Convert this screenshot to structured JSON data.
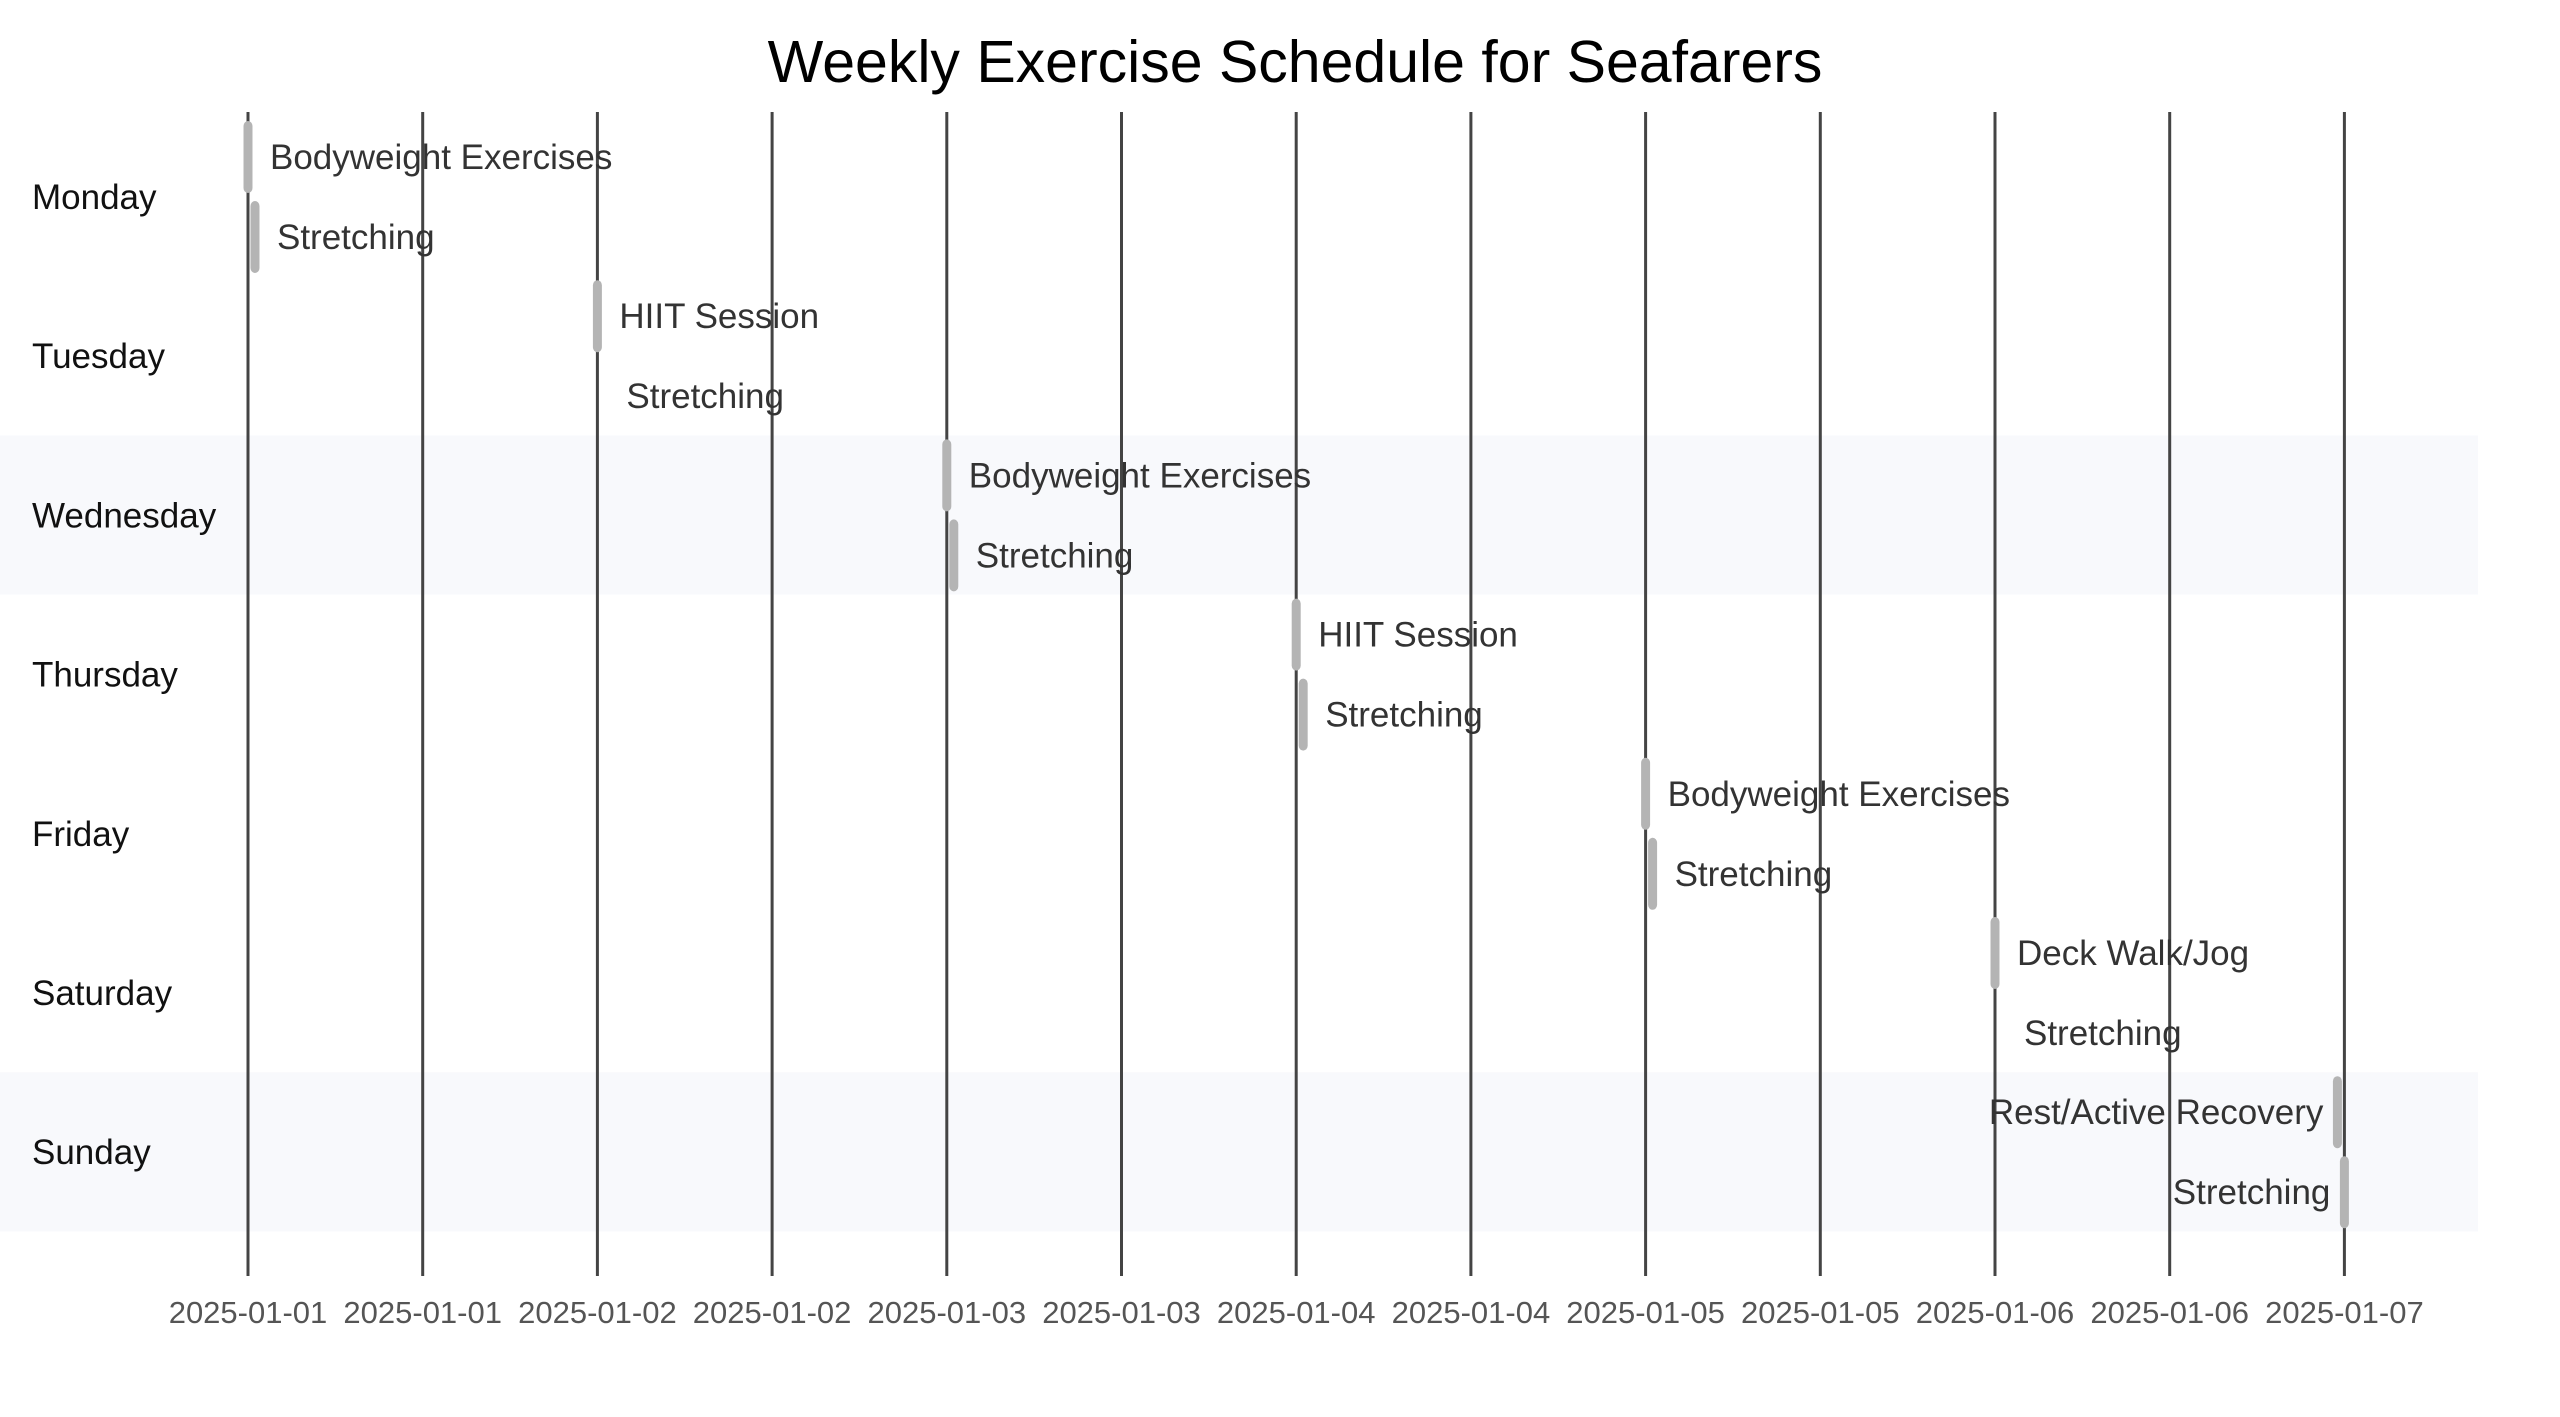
{
  "chart_data": {
    "type": "gantt",
    "title": "Weekly Exercise Schedule for Seafarers",
    "xlabel": "",
    "ylabel": "",
    "x_tick_labels": [
      "2025-01-01",
      "2025-01-01",
      "2025-01-02",
      "2025-01-02",
      "2025-01-03",
      "2025-01-03",
      "2025-01-04",
      "2025-01-04",
      "2025-01-05",
      "2025-01-05",
      "2025-01-06",
      "2025-01-06",
      "2025-01-07"
    ],
    "x_range_days": [
      0,
      6
    ],
    "rows": [
      {
        "day": "Monday",
        "shaded": false,
        "tasks": [
          {
            "activity": "Bodyweight Exercises",
            "start_day": 0.0,
            "duration_min": 30
          },
          {
            "activity": "Stretching",
            "start_day": 0.02,
            "duration_min": 15
          }
        ]
      },
      {
        "day": "Tuesday",
        "shaded": false,
        "tasks": [
          {
            "activity": "HIIT Session",
            "start_day": 1.0,
            "duration_min": 30
          },
          {
            "activity": "Stretching",
            "start_day": 1.02,
            "duration_min": 0
          }
        ]
      },
      {
        "day": "Wednesday",
        "shaded": true,
        "tasks": [
          {
            "activity": "Bodyweight Exercises",
            "start_day": 2.0,
            "duration_min": 30
          },
          {
            "activity": "Stretching",
            "start_day": 2.02,
            "duration_min": 15
          }
        ]
      },
      {
        "day": "Thursday",
        "shaded": false,
        "tasks": [
          {
            "activity": "HIIT Session",
            "start_day": 3.0,
            "duration_min": 20
          },
          {
            "activity": "Stretching",
            "start_day": 3.02,
            "duration_min": 15
          }
        ]
      },
      {
        "day": "Friday",
        "shaded": false,
        "tasks": [
          {
            "activity": "Bodyweight Exercises",
            "start_day": 4.0,
            "duration_min": 30
          },
          {
            "activity": "Stretching",
            "start_day": 4.02,
            "duration_min": 15
          }
        ]
      },
      {
        "day": "Saturday",
        "shaded": false,
        "tasks": [
          {
            "activity": "Deck Walk/Jog",
            "start_day": 5.0,
            "duration_min": 30
          },
          {
            "activity": "Stretching",
            "start_day": 5.02,
            "duration_min": 0
          }
        ]
      },
      {
        "day": "Sunday",
        "shaded": true,
        "tasks": [
          {
            "activity": "Rest/Active Recovery",
            "start_day": 5.98,
            "duration_min": 20,
            "label_side": "left"
          },
          {
            "activity": "Stretching",
            "start_day": 6.0,
            "duration_min": 15,
            "label_side": "left"
          }
        ]
      }
    ],
    "colors": {
      "bar": "#b4b4b4",
      "shaded_row": "#f8f9fc",
      "gridline": "#444444"
    }
  }
}
